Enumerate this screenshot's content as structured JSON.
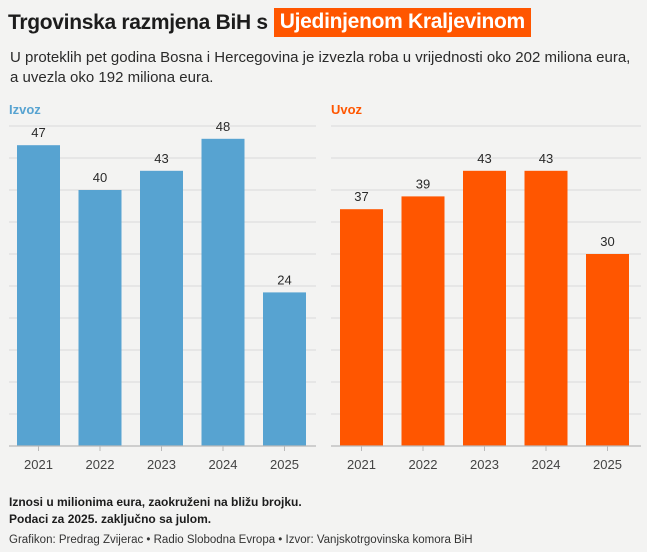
{
  "header": {
    "title": "Trgovinska razmjena BiH s",
    "highlight": "Ujedinjenom Kraljevinom",
    "subtitle": "U proteklih pet godina Bosna i Hercegovina je izvezla roba u vrijednosti oko 202 miliona eura, a uvezla oko 192 miliona eura."
  },
  "colors": {
    "izvoz": "#57a3d1",
    "uvoz": "#ff5600",
    "axis": "#b8b8b8",
    "grid": "#d9d9d9"
  },
  "chart_data": [
    {
      "type": "bar",
      "title": "Izvoz",
      "categories": [
        "2021",
        "2022",
        "2023",
        "2024",
        "2025"
      ],
      "values": [
        47,
        40,
        43,
        48,
        24
      ],
      "ylim": [
        0,
        50
      ],
      "grid": true,
      "unit": "miliona eura"
    },
    {
      "type": "bar",
      "title": "Uvoz",
      "categories": [
        "2021",
        "2022",
        "2023",
        "2024",
        "2025"
      ],
      "values": [
        37,
        39,
        43,
        43,
        30
      ],
      "ylim": [
        0,
        50
      ],
      "grid": true,
      "unit": "miliona eura"
    }
  ],
  "footer": {
    "note1": "Iznosi u milionima eura, zaokruženi na bližu brojku.",
    "note2": "Podaci za 2025. zaključno sa julom.",
    "credit": "Grafikon: Predrag Zvijerac • Radio Slobodna Evropa • Izvor: Vanjskotrgovinska komora BiH"
  }
}
